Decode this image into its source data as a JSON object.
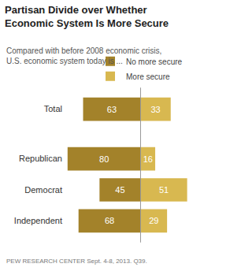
{
  "chart_data": {
    "type": "bar",
    "orientation": "horizontal",
    "title": "Partisan Divide over Whether Economic System Is More Secure",
    "subtitle": "Compared with before 2008 economic crisis, U.S. economic system today is ...",
    "source": "PEW RESEARCH CENTER Sept. 4-8, 2013. Q39.",
    "categories": [
      "Total",
      "Republican",
      "Democrat",
      "Independent"
    ],
    "series": [
      {
        "name": "No more secure",
        "color": "#a3822a",
        "values": [
          63,
          80,
          45,
          68
        ]
      },
      {
        "name": "More secure",
        "color": "#d8b850",
        "values": [
          33,
          16,
          51,
          29
        ]
      }
    ],
    "xlim": [
      0,
      85
    ],
    "data_labels": true,
    "tick_labels": "y",
    "legend": "top"
  }
}
